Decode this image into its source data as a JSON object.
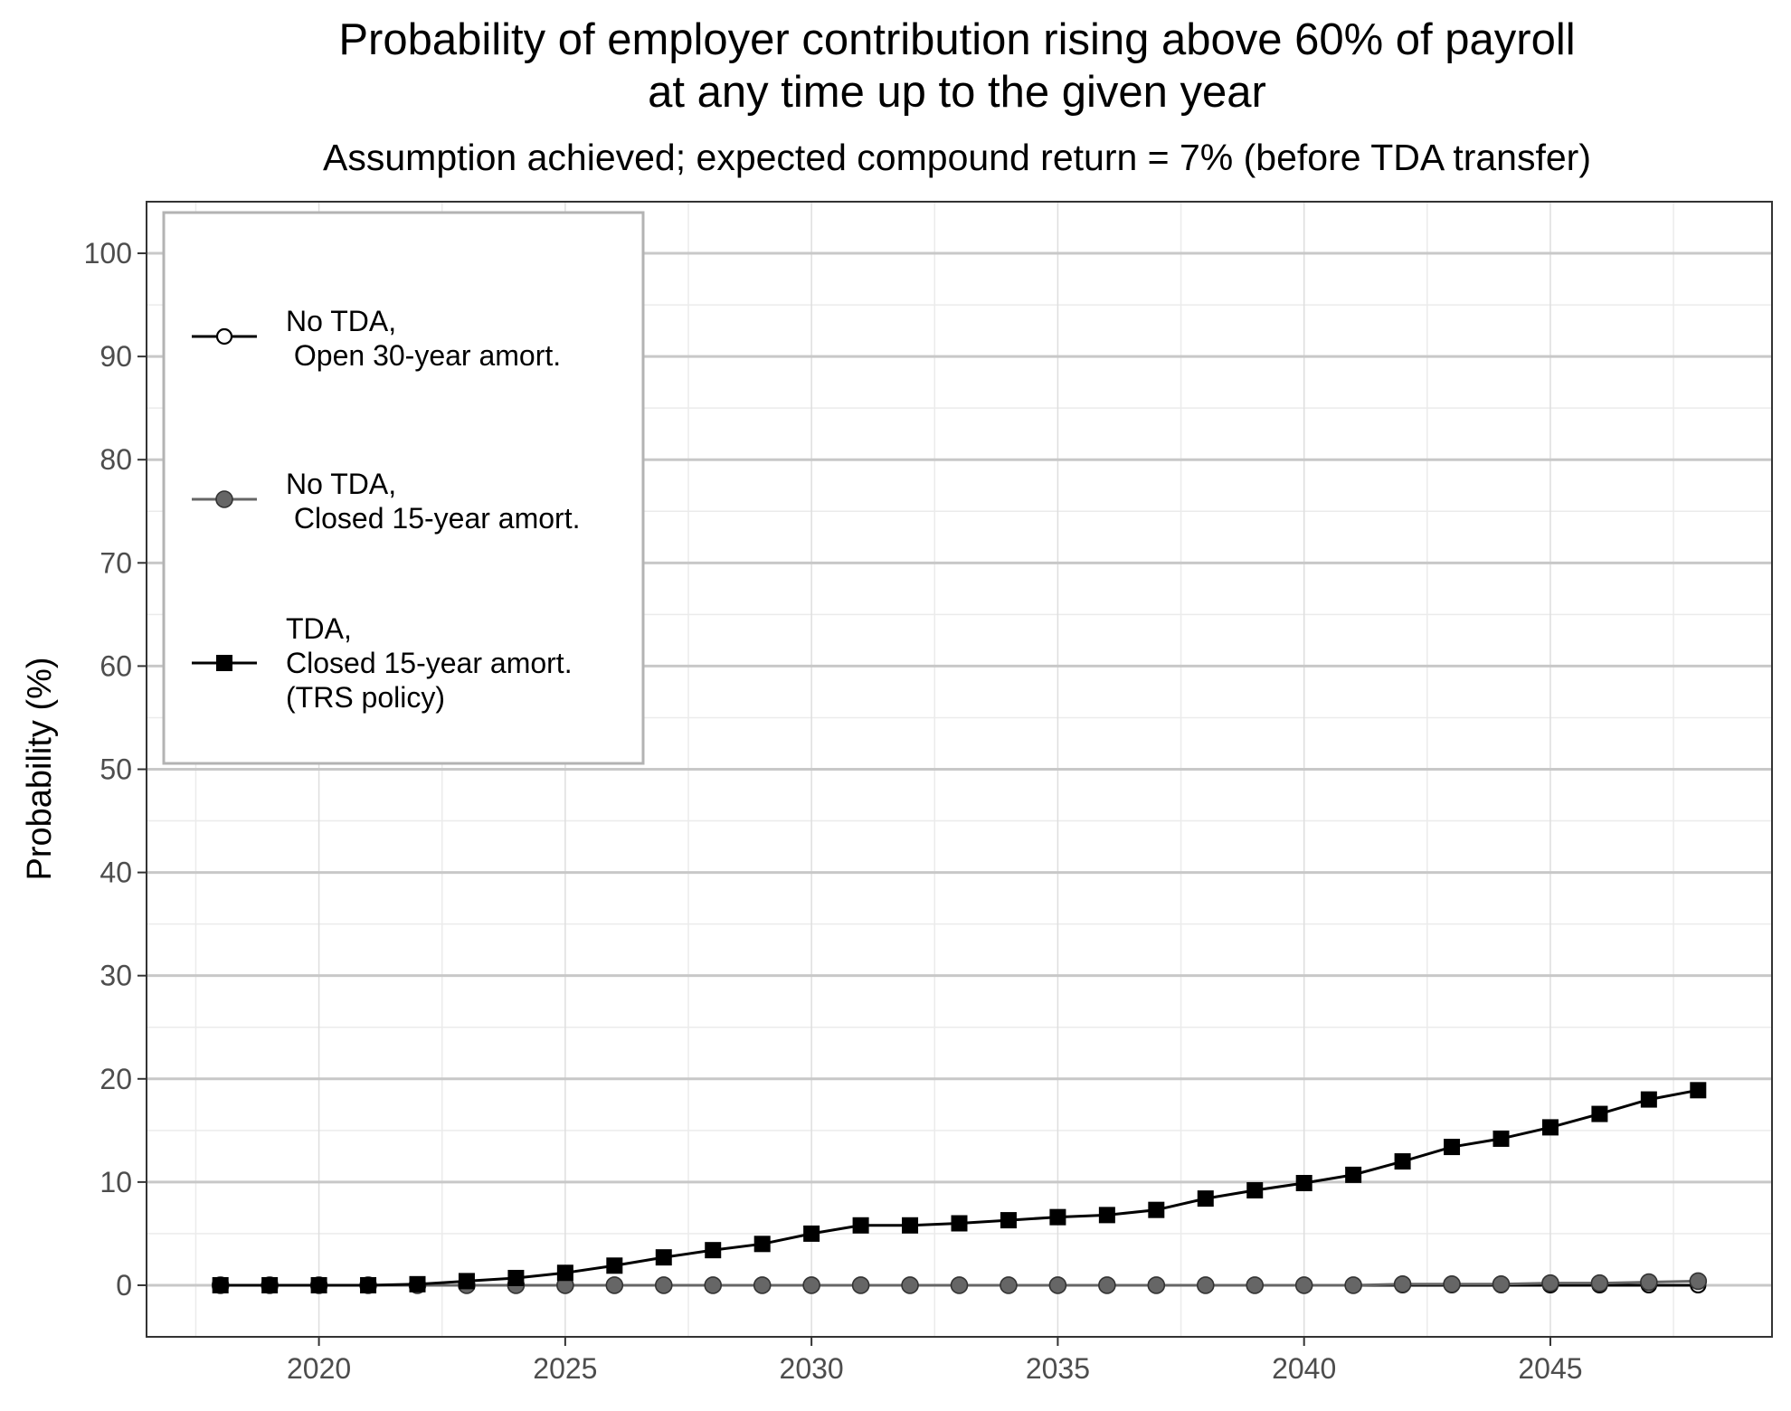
{
  "chart_data": {
    "type": "line",
    "title": [
      "Probability of employer contribution rising above 60% of payroll",
      "at any time up to the given year"
    ],
    "subtitle": "Assumption achieved; expected compound return = 7% (before TDA transfer)",
    "xlabel": "",
    "ylabel": "Probability (%)",
    "xlim": [
      2016.5,
      2049.5
    ],
    "ylim": [
      -5,
      105
    ],
    "x_ticks": [
      2020,
      2025,
      2030,
      2035,
      2040,
      2045
    ],
    "y_ticks": [
      0,
      10,
      20,
      30,
      40,
      50,
      60,
      70,
      80,
      90,
      100
    ],
    "grid": true,
    "legend_position": "top-left inside",
    "x": [
      2018,
      2019,
      2020,
      2021,
      2022,
      2023,
      2024,
      2025,
      2026,
      2027,
      2028,
      2029,
      2030,
      2031,
      2032,
      2033,
      2034,
      2035,
      2036,
      2037,
      2038,
      2039,
      2040,
      2041,
      2042,
      2043,
      2044,
      2045,
      2046,
      2047,
      2048
    ],
    "series": [
      {
        "name": [
          "No TDA,",
          " Open 30-year amort."
        ],
        "marker": "open-circle",
        "color": "#000000",
        "values": [
          0,
          0,
          0,
          0,
          0,
          0,
          0,
          0,
          0,
          0,
          0,
          0,
          0,
          0,
          0,
          0,
          0,
          0,
          0,
          0,
          0,
          0,
          0,
          0,
          0,
          0,
          0,
          0,
          0,
          0,
          0
        ]
      },
      {
        "name": [
          "No TDA,",
          " Closed 15-year amort."
        ],
        "marker": "filled-circle",
        "color": "#666666",
        "values": [
          0,
          0,
          0,
          0,
          0,
          0,
          0,
          0,
          0,
          0,
          0,
          0,
          0,
          0,
          0,
          0,
          0,
          0,
          0,
          0,
          0,
          0,
          0,
          0,
          0.1,
          0.1,
          0.1,
          0.2,
          0.2,
          0.3,
          0.4
        ]
      },
      {
        "name": [
          "TDA,",
          "Closed 15-year amort.",
          "(TRS policy)"
        ],
        "marker": "filled-square",
        "color": "#000000",
        "values": [
          0,
          0,
          0,
          0,
          0.1,
          0.4,
          0.7,
          1.2,
          1.9,
          2.7,
          3.4,
          4.0,
          5.0,
          5.8,
          5.8,
          6.0,
          6.3,
          6.6,
          6.8,
          7.3,
          8.4,
          9.2,
          9.9,
          10.7,
          12.0,
          13.4,
          14.2,
          15.3,
          16.6,
          18.0,
          18.9
        ]
      }
    ]
  }
}
